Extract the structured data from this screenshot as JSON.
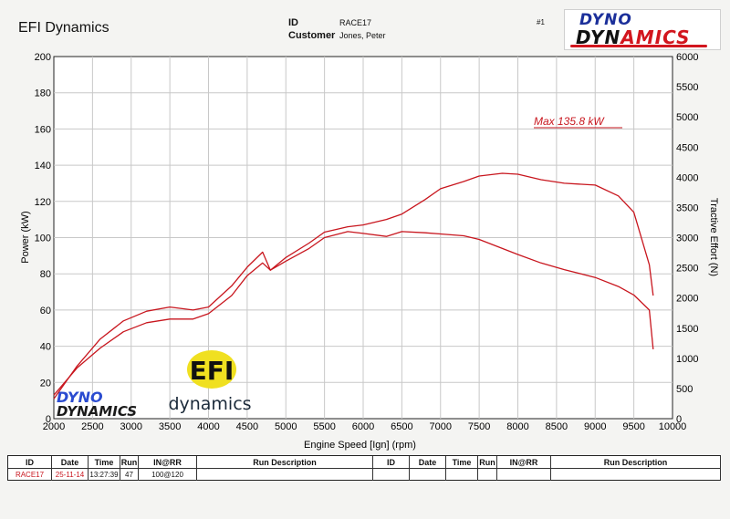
{
  "header": {
    "company": "EFI Dynamics",
    "id_label": "ID",
    "id_value": "RACE17",
    "customer_label": "Customer",
    "customer_value": "Jones, Peter",
    "run_number": "#1"
  },
  "logos": {
    "dyno_top": "DYNO",
    "dyno_bottom_a": "DYN",
    "dyno_bottom_b": "AMICS",
    "efi_badge": "EFI",
    "efi_text": "dynamics",
    "watermark_top": "DYNO",
    "watermark_bottom": "DYNAMICS"
  },
  "chart_data": {
    "type": "line",
    "annotation": "Max 135.8 kW",
    "xlabel": "Engine Speed [Ign] (rpm)",
    "ylabel_left": "Power (kW)",
    "ylabel_right": "Tractive Effort (N)",
    "xlim": [
      2000,
      10000
    ],
    "ylim_left": [
      0,
      200
    ],
    "ylim_right": [
      0,
      6000
    ],
    "x_ticks": [
      2000,
      2500,
      3000,
      3500,
      4000,
      4500,
      5000,
      5500,
      6000,
      6500,
      7000,
      7500,
      8000,
      8500,
      9000,
      9500,
      10000
    ],
    "y_ticks_left": [
      0,
      20,
      40,
      60,
      80,
      100,
      120,
      140,
      160,
      180,
      200
    ],
    "y_ticks_right": [
      0,
      500,
      1000,
      1500,
      2000,
      2500,
      3000,
      3500,
      4000,
      4500,
      5000,
      5500,
      6000
    ],
    "grid": true,
    "line_color": "#c8161e",
    "series": [
      {
        "axis": "left",
        "x": [
          2000,
          2300,
          2600,
          2900,
          3200,
          3500,
          3800,
          4000,
          4300,
          4500,
          4700,
          4800,
          5000,
          5300,
          5500,
          5800,
          6000,
          6300,
          6500,
          6800,
          7000,
          7300,
          7500,
          7800,
          8000,
          8300,
          8600,
          9000,
          9300,
          9500,
          9700,
          9750
        ],
        "y": [
          13,
          28,
          39,
          48,
          53,
          55,
          55,
          58,
          68,
          79,
          86,
          82,
          89,
          97,
          103,
          106,
          107,
          110,
          113,
          121,
          127,
          131,
          134,
          135.5,
          135,
          132,
          130,
          129,
          123,
          114,
          85,
          68
        ]
      },
      {
        "axis": "right",
        "x": [
          2000,
          2300,
          2600,
          2900,
          3200,
          3500,
          3800,
          4000,
          4300,
          4500,
          4700,
          4800,
          5000,
          5300,
          5500,
          5800,
          6000,
          6300,
          6500,
          6800,
          7000,
          7300,
          7500,
          7800,
          8000,
          8300,
          8600,
          9000,
          9300,
          9500,
          9700,
          9750
        ],
        "y": [
          330,
          870,
          1320,
          1620,
          1780,
          1850,
          1800,
          1850,
          2200,
          2510,
          2760,
          2460,
          2610,
          2820,
          3000,
          3100,
          3070,
          3020,
          3100,
          3080,
          3060,
          3030,
          2970,
          2820,
          2720,
          2580,
          2470,
          2340,
          2190,
          2050,
          1800,
          1150
        ]
      }
    ]
  },
  "table": {
    "headers_left": [
      "ID",
      "Date",
      "Time",
      "Run",
      "IN@RR",
      "Run Description"
    ],
    "headers_right": [
      "ID",
      "Date",
      "Time",
      "Run",
      "IN@RR",
      "Run Description"
    ],
    "row": [
      "RACE17",
      "25-11-14",
      "13:27:39",
      "47",
      "100@120",
      ""
    ]
  }
}
